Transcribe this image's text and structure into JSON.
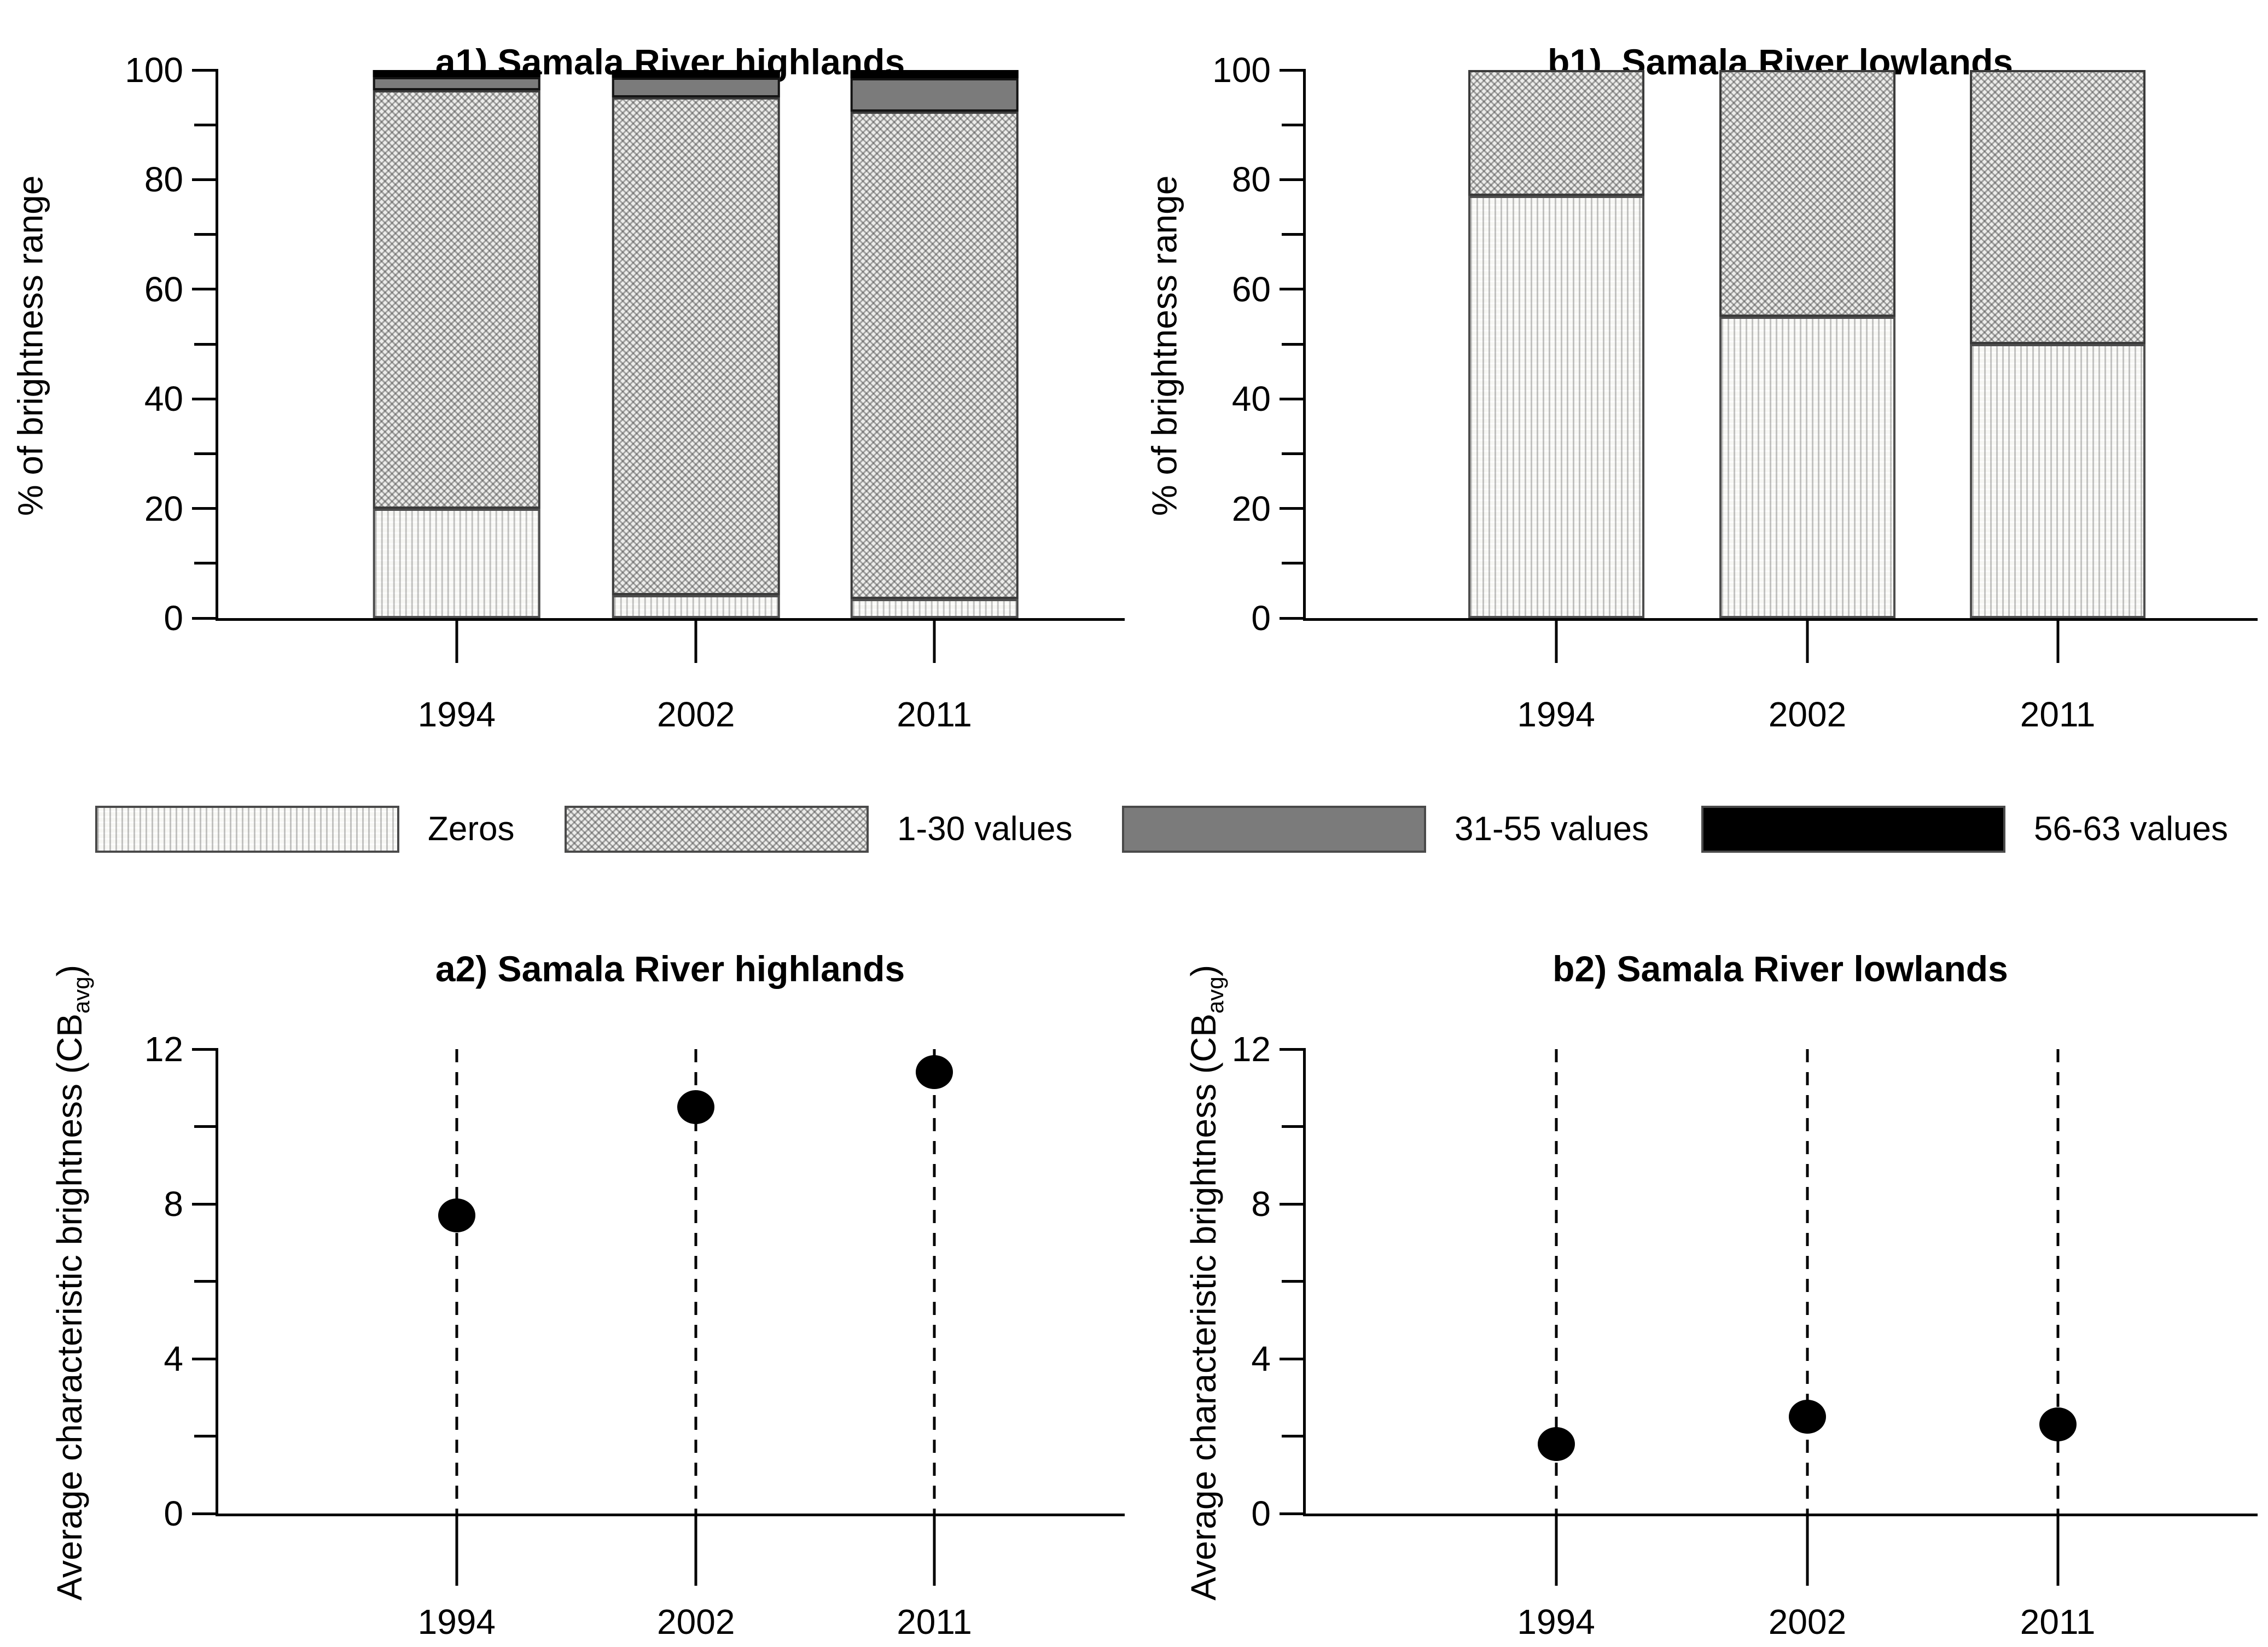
{
  "legend": {
    "items": [
      {
        "label": "Zeros",
        "key": "zeros",
        "fill": "pattern-dots-light"
      },
      {
        "label": "1-30 values",
        "key": "v1_30",
        "fill": "pattern-diagonal-hatch"
      },
      {
        "label": "31-55 values",
        "key": "v31_55",
        "fill": "#7b7b7b"
      },
      {
        "label": "56-63 values",
        "key": "v56_63",
        "fill": "#000000"
      }
    ]
  },
  "colors": {
    "axis": "#000000",
    "solid_gray_segment": "#7b7b7b",
    "black_segment": "#000000"
  },
  "chart_data": [
    {
      "id": "a1",
      "type": "bar",
      "stacked": true,
      "title": "a1) Samala River highlands",
      "ylabel": {
        "pre": "% of brightness range",
        "sub": "",
        "post": ""
      },
      "categories": [
        "1994",
        "2002",
        "2011"
      ],
      "ylim": [
        0,
        100
      ],
      "yticks_major": [
        0,
        20,
        40,
        60,
        80,
        100
      ],
      "yticks_minor": [
        10,
        30,
        50,
        70,
        90
      ],
      "grid": "off",
      "series": [
        {
          "name": "Zeros",
          "key": "zeros",
          "values": [
            20,
            4.2,
            3.5
          ]
        },
        {
          "name": "1-30 values",
          "key": "v1_30",
          "values": [
            76.3,
            90.8,
            88.9
          ]
        },
        {
          "name": "31-55 values",
          "key": "v31_55",
          "values": [
            2.4,
            3.6,
            6.1
          ]
        },
        {
          "name": "56-63 values",
          "key": "v56_63",
          "values": [
            1.3,
            1.4,
            1.5
          ]
        }
      ]
    },
    {
      "id": "b1",
      "type": "bar",
      "stacked": true,
      "title": "b1)  Samala River lowlands",
      "ylabel": {
        "pre": "% of brightness range",
        "sub": "",
        "post": ""
      },
      "categories": [
        "1994",
        "2002",
        "2011"
      ],
      "ylim": [
        0,
        100
      ],
      "yticks_major": [
        0,
        20,
        40,
        60,
        80,
        100
      ],
      "yticks_minor": [
        10,
        30,
        50,
        70,
        90
      ],
      "grid": "off",
      "series": [
        {
          "name": "Zeros",
          "key": "zeros",
          "values": [
            77,
            55,
            50
          ]
        },
        {
          "name": "1-30 values",
          "key": "v1_30",
          "values": [
            23,
            45,
            50
          ]
        },
        {
          "name": "31-55 values",
          "key": "v31_55",
          "values": [
            0,
            0,
            0
          ]
        },
        {
          "name": "56-63 values",
          "key": "v56_63",
          "values": [
            0,
            0,
            0
          ]
        }
      ]
    },
    {
      "id": "a2",
      "type": "scatter",
      "title": "a2) Samala River highlands",
      "ylabel": {
        "pre": "Average characteristic brightness (CB",
        "sub": "avg",
        "post": ")"
      },
      "categories": [
        "1994",
        "2002",
        "2011"
      ],
      "ylim": [
        0,
        12
      ],
      "yticks_major": [
        0,
        4,
        8,
        12
      ],
      "yticks_minor": [
        2,
        6,
        10
      ],
      "grid": "off",
      "guide_lines": "dashed-vertical",
      "values": [
        7.7,
        10.5,
        11.4
      ]
    },
    {
      "id": "b2",
      "type": "scatter",
      "title": "b2) Samala River lowlands",
      "ylabel": {
        "pre": "Average characteristic brightness (CB",
        "sub": "avg",
        "post": ")"
      },
      "categories": [
        "1994",
        "2002",
        "2011"
      ],
      "ylim": [
        0,
        12
      ],
      "yticks_major": [
        0,
        4,
        8,
        12
      ],
      "yticks_minor": [
        2,
        6,
        10
      ],
      "grid": "off",
      "guide_lines": "dashed-vertical",
      "values": [
        1.8,
        2.5,
        2.3
      ]
    }
  ]
}
